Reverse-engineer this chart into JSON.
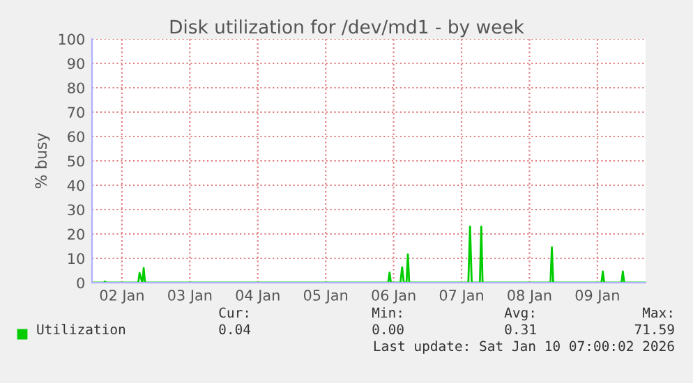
{
  "chart_data": {
    "type": "line",
    "title": "Disk utilization for /dev/md1 - by week",
    "ylabel": "% busy",
    "series": [
      {
        "name": "Utilization",
        "color": "#00cc00",
        "x": [
          "2026-01-01T13:26",
          "2026-01-01T17:31",
          "2026-01-01T18:00",
          "2026-01-01T18:29",
          "2026-01-02T05:46",
          "2026-01-02T06:14",
          "2026-01-02T06:43",
          "2026-01-02T07:12",
          "2026-01-02T07:41",
          "2026-01-02T08:10",
          "2026-01-02T08:38",
          "2026-01-05T22:05",
          "2026-01-05T22:34",
          "2026-01-05T23:02",
          "2026-01-06T02:24",
          "2026-01-06T03:00",
          "2026-01-06T03:36",
          "2026-01-06T04:34",
          "2026-01-06T05:02",
          "2026-01-06T05:31",
          "2026-01-07T02:24",
          "2026-01-07T03:00",
          "2026-01-07T03:36",
          "2026-01-07T06:29",
          "2026-01-07T06:58",
          "2026-01-07T07:26",
          "2026-01-08T07:26",
          "2026-01-08T07:55",
          "2026-01-08T08:24",
          "2026-01-09T01:26",
          "2026-01-09T01:55",
          "2026-01-09T02:24",
          "2026-01-09T08:31",
          "2026-01-09T09:00",
          "2026-01-09T09:29",
          "2026-01-09T17:02"
        ],
        "values": [
          0,
          0,
          0.5,
          0,
          0,
          4,
          2,
          0,
          6,
          0,
          0,
          0,
          4.2,
          0,
          0,
          6.3,
          0,
          0,
          11.6,
          0,
          0,
          23,
          0,
          0,
          23,
          0,
          0,
          14.5,
          0,
          0,
          4.6,
          0,
          0,
          4.6,
          0,
          0
        ]
      }
    ],
    "xlim": [
      "2026-01-01T13:26",
      "2026-01-09T17:02"
    ],
    "xticks": [
      {
        "value": "2026-01-02",
        "label": "02 Jan"
      },
      {
        "value": "2026-01-03",
        "label": "03 Jan"
      },
      {
        "value": "2026-01-04",
        "label": "04 Jan"
      },
      {
        "value": "2026-01-05",
        "label": "05 Jan"
      },
      {
        "value": "2026-01-06",
        "label": "06 Jan"
      },
      {
        "value": "2026-01-07",
        "label": "07 Jan"
      },
      {
        "value": "2026-01-08",
        "label": "08 Jan"
      },
      {
        "value": "2026-01-09",
        "label": "09 Jan"
      }
    ],
    "ylim": [
      0,
      100
    ],
    "yticks": [
      0,
      10,
      20,
      30,
      40,
      50,
      60,
      70,
      80,
      90,
      100
    ],
    "grid": true,
    "legend": "bottom",
    "annotations": [
      "Cur:",
      "Min:",
      "Avg:",
      "Max:",
      "0.04",
      "0.00",
      "0.31",
      "71.59",
      "Last update: Sat Jan 10 07:00:02 2026"
    ]
  }
}
